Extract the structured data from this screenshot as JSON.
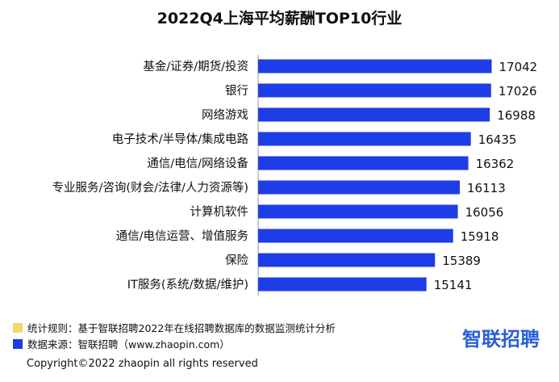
{
  "title": "2022Q4上海平均薪酬TOP10行业",
  "chart_data": {
    "type": "bar",
    "orientation": "horizontal",
    "title": "2022Q4上海平均薪酬TOP10行业",
    "categories": [
      "基金/证券/期货/投资",
      "银行",
      "网络游戏",
      "电子技术/半导体/集成电路",
      "通信/电信/网络设备",
      "专业服务/咨询(财会/法律/人力资源等)",
      "计算机软件",
      "通信/电信运营、增值服务",
      "保险",
      "IT服务(系统/数据/维护)"
    ],
    "values": [
      17042,
      17026,
      16988,
      16435,
      16362,
      16113,
      16056,
      15918,
      15389,
      15141
    ],
    "data_labels": [
      "17042",
      "17026",
      "16988",
      "16435",
      "16362",
      "16113",
      "16056",
      "15918",
      "15389",
      "15141"
    ],
    "bar_color": "#1f3de6",
    "grid": false,
    "legend": "none"
  },
  "notes": {
    "rule_color": "#f5d76e",
    "rule_text": "统计规则：基于智联招聘2022年在线招聘数据库的数据监测统计分析",
    "source_color": "#1f3de6",
    "source_text": "数据来源：智联招聘（www.zhaopin.com）"
  },
  "brand": "智联招聘",
  "copyright": "Copyright©2022 zhaopin all rights reserved"
}
